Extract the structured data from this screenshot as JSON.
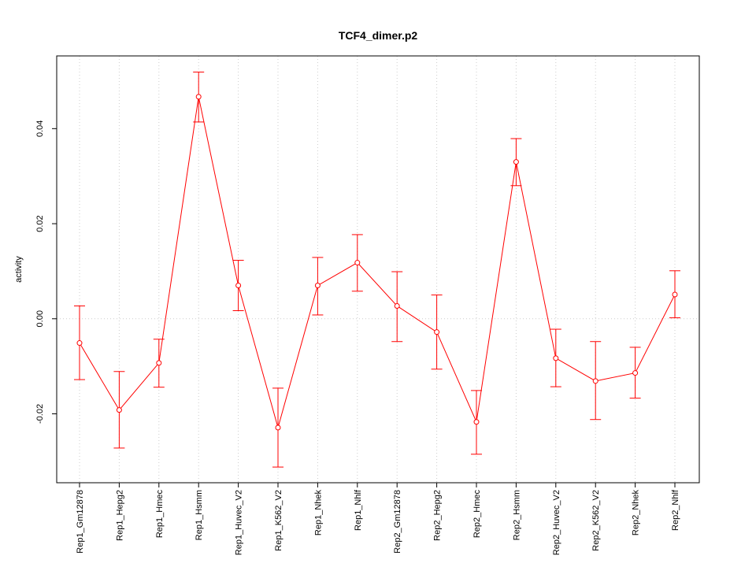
{
  "chart_data": {
    "type": "line",
    "title": "TCF4_dimer.p2",
    "xlabel": "",
    "ylabel": "activity",
    "ylim": [
      -0.0345,
      0.0553
    ],
    "yticks": [
      -0.02,
      0.0,
      0.02,
      0.04
    ],
    "ytick_labels": [
      "-0.02",
      "0.00",
      "0.02",
      "0.04"
    ],
    "grid": "vertical dotted at each category; horizontal dotted at 0",
    "color": "#ff0000",
    "categories": [
      "Rep1_Gm12878",
      "Rep1_Hepg2",
      "Rep1_Hmec",
      "Rep1_Hsmm",
      "Rep1_Huvec_V2",
      "Rep1_K562_V2",
      "Rep1_Nhek",
      "Rep1_Nhlf",
      "Rep2_Gm12878",
      "Rep2_Hepg2",
      "Rep2_Hmec",
      "Rep2_Hsmm",
      "Rep2_Huvec_V2",
      "Rep2_K562_V2",
      "Rep2_Nhek",
      "Rep2_Nhlf"
    ],
    "values": [
      -0.0051,
      -0.0192,
      -0.0093,
      0.0467,
      0.007,
      -0.0229,
      0.007,
      0.0118,
      0.0027,
      -0.0028,
      -0.0217,
      0.033,
      -0.0083,
      -0.0131,
      -0.0114,
      0.0051
    ],
    "upper": [
      0.0027,
      -0.0111,
      -0.0043,
      0.0519,
      0.0123,
      -0.0146,
      0.0129,
      0.0177,
      0.0099,
      0.005,
      -0.0151,
      0.0379,
      -0.0022,
      -0.0048,
      -0.006,
      0.0101
    ],
    "lower": [
      -0.0128,
      -0.0272,
      -0.0144,
      0.0414,
      0.0017,
      -0.0312,
      0.0008,
      0.0058,
      -0.0048,
      -0.0106,
      -0.0285,
      0.028,
      -0.0143,
      -0.0212,
      -0.0167,
      0.0002
    ]
  }
}
